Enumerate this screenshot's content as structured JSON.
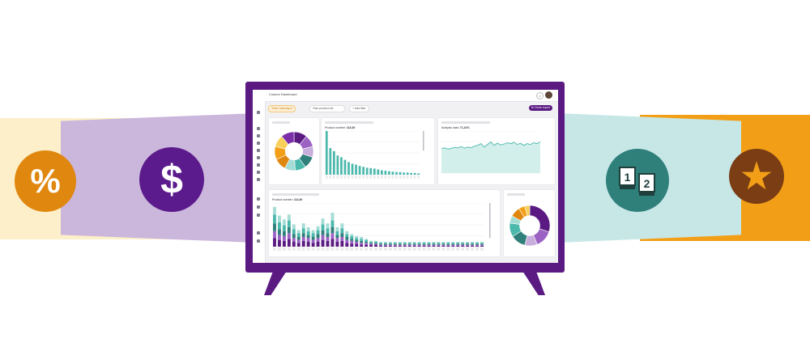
{
  "banners": {
    "percent_icon": "percent-icon",
    "dollar_icon": "dollar-icon",
    "rank_icon": "rank-icon",
    "star_icon": "star-icon",
    "percent_glyph": "%",
    "dollar_glyph": "$",
    "rank_one": "1",
    "rank_two": "2",
    "star_glyph": "★"
  },
  "colors": {
    "purple": "#5a1a82",
    "teal": "#4bb8ac",
    "orange": "#f29f17",
    "yellow": "#fcefc9",
    "lilac": "#cbb6dc"
  },
  "dashboard": {
    "title": "Custom Dashboard",
    "search_glyph": "⌕",
    "filters": {
      "time": "Time: Last day ▾",
      "product_set": "Own product set",
      "add_filter": "+ Add filter",
      "clone_report": "⧉ Clone report"
    },
    "cards": {
      "bar_top_label": "Product number:",
      "bar_top_value": "114,00",
      "line_label": "Analysis data:",
      "line_value": "71,41%",
      "bar_bottom_label": "Product number:",
      "bar_bottom_value": "114,00"
    }
  },
  "chart_data": [
    {
      "type": "pie",
      "slices": [
        {
          "value": 11,
          "color": "#5a1a82"
        },
        {
          "value": 10,
          "color": "#9b62c4"
        },
        {
          "value": 9,
          "color": "#c8aedc"
        },
        {
          "value": 10,
          "color": "#2f7f7a"
        },
        {
          "value": 9,
          "color": "#4bb8ac"
        },
        {
          "value": 9,
          "color": "#a4dcd6"
        },
        {
          "value": 10,
          "color": "#e0870f"
        },
        {
          "value": 11,
          "color": "#f29f17"
        },
        {
          "value": 10,
          "color": "#f7cf5a"
        },
        {
          "value": 11,
          "color": "#7b2ea8"
        }
      ]
    },
    {
      "type": "bar",
      "values": [
        100,
        61,
        54,
        44,
        40,
        34,
        29,
        25,
        23,
        20,
        18,
        16,
        15,
        14,
        12,
        10,
        9,
        8,
        7,
        6,
        6,
        5,
        5,
        4,
        4,
        3
      ],
      "ylim": [
        0,
        100
      ]
    },
    {
      "type": "line",
      "values": [
        58,
        60,
        57,
        59,
        61,
        60,
        63,
        59,
        62,
        60,
        64,
        66,
        70,
        62,
        68,
        74,
        66,
        71,
        67,
        69,
        72,
        70,
        73,
        68,
        71,
        66,
        70,
        68,
        72,
        70,
        74
      ],
      "ylim": [
        0,
        100
      ]
    },
    {
      "type": "bar",
      "stacked": true,
      "categories": 44,
      "series": [
        {
          "color": "#5a1a82",
          "values": [
            9,
            7,
            6,
            8,
            5,
            4,
            6,
            5,
            4,
            5,
            7,
            6,
            8,
            5,
            6,
            4,
            3,
            3,
            2,
            2,
            2,
            2,
            1,
            1,
            1,
            1,
            1,
            1,
            1,
            1,
            1,
            1,
            1,
            1,
            1,
            1,
            1,
            1,
            1,
            1,
            1,
            1,
            1,
            1
          ]
        },
        {
          "color": "#9b62c4",
          "values": [
            7,
            5,
            5,
            6,
            4,
            3,
            4,
            4,
            3,
            4,
            5,
            4,
            6,
            4,
            4,
            3,
            3,
            2,
            2,
            2,
            1,
            1,
            1,
            1,
            1,
            1,
            1,
            1,
            1,
            1,
            1,
            1,
            1,
            1,
            1,
            1,
            1,
            1,
            1,
            1,
            1,
            1,
            1,
            1
          ]
        },
        {
          "color": "#2f7f7a",
          "values": [
            8,
            6,
            5,
            6,
            4,
            3,
            4,
            3,
            3,
            4,
            5,
            4,
            6,
            3,
            4,
            3,
            2,
            2,
            2,
            1,
            1,
            1,
            1,
            1,
            1,
            1,
            1,
            1,
            1,
            1,
            1,
            1,
            1,
            1,
            1,
            1,
            1,
            1,
            1,
            1,
            1,
            1,
            1,
            1
          ]
        },
        {
          "color": "#4bb8ac",
          "values": [
            9,
            7,
            6,
            7,
            5,
            4,
            5,
            4,
            4,
            4,
            6,
            5,
            7,
            4,
            5,
            3,
            3,
            2,
            2,
            2,
            1,
            1,
            1,
            1,
            1,
            1,
            1,
            1,
            1,
            1,
            1,
            1,
            1,
            1,
            1,
            1,
            1,
            1,
            1,
            1,
            1,
            1,
            1,
            1
          ]
        },
        {
          "color": "#a4dcd6",
          "values": [
            8,
            7,
            6,
            6,
            5,
            3,
            5,
            4,
            3,
            4,
            6,
            5,
            8,
            4,
            5,
            3,
            2,
            2,
            2,
            1,
            1,
            1,
            1,
            1,
            1,
            1,
            1,
            1,
            1,
            1,
            1,
            1,
            1,
            1,
            1,
            1,
            1,
            1,
            1,
            1,
            1,
            1,
            1,
            1
          ]
        }
      ]
    },
    {
      "type": "pie",
      "slices": [
        {
          "value": 30,
          "color": "#5a1a82"
        },
        {
          "value": 14,
          "color": "#9b62c4"
        },
        {
          "value": 10,
          "color": "#c8aedc"
        },
        {
          "value": 12,
          "color": "#2f7f7a"
        },
        {
          "value": 11,
          "color": "#4bb8ac"
        },
        {
          "value": 6,
          "color": "#a4dcd6"
        },
        {
          "value": 8,
          "color": "#e0870f"
        },
        {
          "value": 5,
          "color": "#f29f17"
        },
        {
          "value": 4,
          "color": "#f7cf5a"
        }
      ]
    }
  ]
}
